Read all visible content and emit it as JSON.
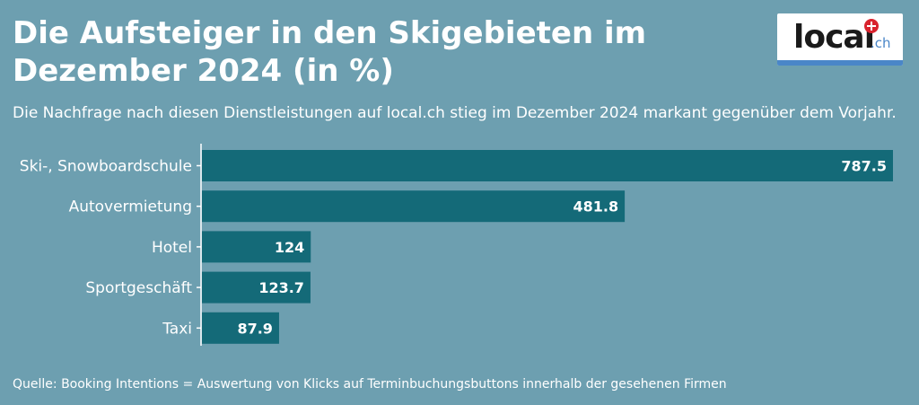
{
  "header": {
    "title": "Die Aufsteiger in den Skigebieten im Dezember 2024 (in %)",
    "subtitle": "Die Nachfrage nach diesen Dienstleistungen auf local.ch stieg im Dezember 2024 markant gegenüber dem Vorjahr."
  },
  "logo": {
    "text": "local",
    "suffix": ".ch",
    "icon": "swiss-cross-icon"
  },
  "footer": {
    "source": "Quelle: Booking Intentions = Auswertung von Klicks auf Terminbuchungsbuttons innerhalb der gesehenen Firmen"
  },
  "colors": {
    "background": "#6d9fb0",
    "bar": "#146a78",
    "text": "#ffffff"
  },
  "chart_data": {
    "type": "bar",
    "orientation": "horizontal",
    "title": "Die Aufsteiger in den Skigebieten im Dezember 2024 (in %)",
    "categories": [
      "Ski-, Snowboardschule",
      "Autovermietung",
      "Hotel",
      "Sportgeschäft",
      "Taxi"
    ],
    "values": [
      787.5,
      481.8,
      124,
      123.7,
      87.9
    ],
    "value_labels": [
      "787.5",
      "481.8",
      "124",
      "123.7",
      "87.9"
    ],
    "xlabel": "",
    "ylabel": "",
    "xlim": [
      0,
      787.5
    ],
    "grid": false,
    "legend": "none"
  }
}
